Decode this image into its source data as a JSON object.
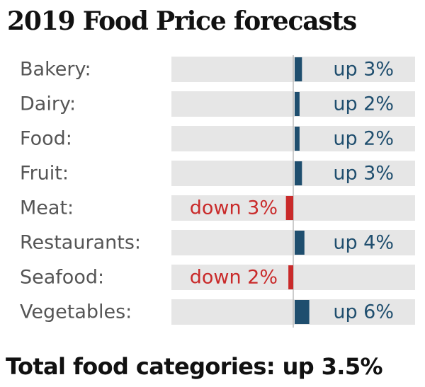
{
  "title": "2019 Food Price forecasts",
  "footer": "Total food categories: up 3.5%",
  "colors": {
    "up": "#1f4e6e",
    "down": "#c92a2a",
    "track": "#e6e6e6",
    "label": "#555555",
    "axis": "#bbbbbb"
  },
  "chart_data": {
    "type": "bar",
    "orientation": "horizontal",
    "title": "2019 Food Price forecasts",
    "categories": [
      "Bakery:",
      "Dairy:",
      "Food:",
      "Fruit:",
      "Meat:",
      "Restaurants:",
      "Seafood:",
      "Vegetables:"
    ],
    "values": [
      3,
      2,
      2,
      3,
      -3,
      4,
      -2,
      6
    ],
    "value_labels": [
      "up 3%",
      "up 2%",
      "up 2%",
      "up 3%",
      "down 3%",
      "up 4%",
      "down 2%",
      "up 6%"
    ],
    "unit": "%",
    "xlim": [
      -50,
      50
    ],
    "grid": false,
    "legend": "none"
  }
}
